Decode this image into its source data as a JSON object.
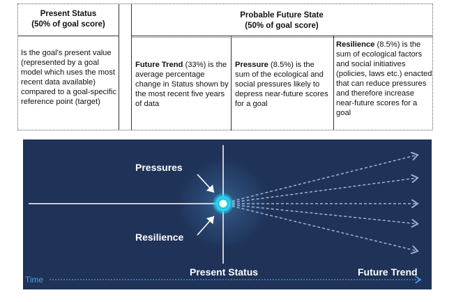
{
  "table": {
    "present_status": {
      "title": "Present Status",
      "subtitle": "(50% of goal score)",
      "description": "Is the goal's present value (represented by a goal model which uses the most recent data available) compared to a goal-specific reference point (target)"
    },
    "future_state": {
      "title": "Probable Future State",
      "subtitle": "(50% of goal score)"
    },
    "future_trend": {
      "term": "Future Trend",
      "weight": " (33%) is",
      "description": "the average percentage change in Status shown by the most recent five years of data"
    },
    "pressure": {
      "term": "Pressure",
      "weight": " (8.5%) is the",
      "description": "sum of the ecological and social pressures likely to depress near-future scores for a goal"
    },
    "resilience": {
      "term": "Resilience",
      "weight": " (8.5%) is the",
      "description": "sum of ecological factors and social initiatives (policies, laws etc.) enacted that can reduce pressures and therefore increase near-future scores for a goal"
    }
  },
  "diagram": {
    "pressures_label": "Pressures",
    "resilience_label": "Resilience",
    "present_status_label": "Present Status",
    "future_trend_label": "Future Trend",
    "time_label": "Time",
    "colors": {
      "background": "#1f3257",
      "glow": "#18c8e8",
      "dashed": "#9fb6d6",
      "time": "#4aa3e6"
    }
  }
}
